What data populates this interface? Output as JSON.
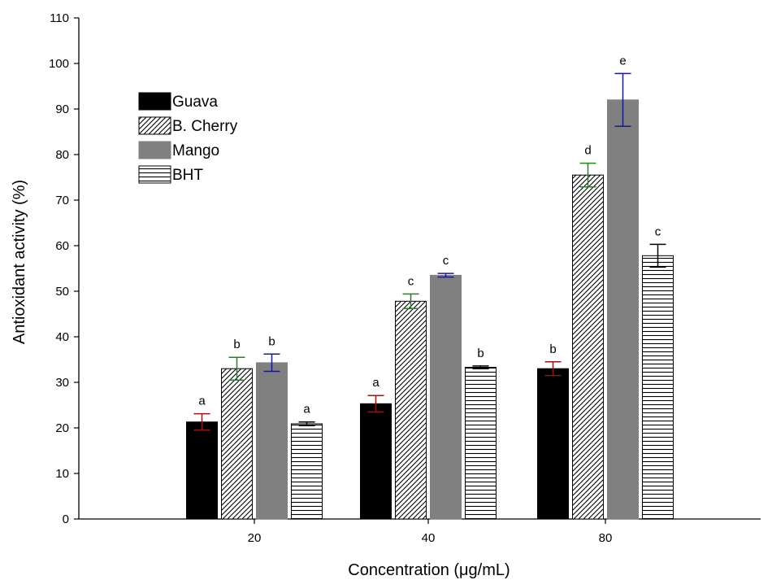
{
  "chart_data": {
    "type": "bar",
    "title": "",
    "xlabel": "Concentration (μg/mL)",
    "ylabel": "Antioxidant activity (%)",
    "ylim": [
      0,
      110
    ],
    "yticks": [
      0,
      10,
      20,
      30,
      40,
      50,
      60,
      70,
      80,
      90,
      100,
      110
    ],
    "categories": [
      "20",
      "40",
      "80"
    ],
    "grid": false,
    "legend_position": "top-left",
    "series": [
      {
        "name": "Guava",
        "fill": "solid-black",
        "errorbar_color": "#8b1a1a",
        "values": [
          21.3,
          25.3,
          33.0
        ],
        "errors": [
          1.8,
          1.8,
          1.5
        ],
        "labels": [
          "a",
          "a",
          "b"
        ]
      },
      {
        "name": "B. Cherry",
        "fill": "diagonal-hatch",
        "errorbar_color": "#1a8a1a",
        "values": [
          33.0,
          47.8,
          75.5
        ],
        "errors": [
          2.5,
          1.6,
          2.6
        ],
        "labels": [
          "b",
          "c",
          "d"
        ]
      },
      {
        "name": "Mango",
        "fill": "solid-gray",
        "errorbar_color": "#1a1a8b",
        "values": [
          34.3,
          53.5,
          92.0
        ],
        "errors": [
          1.9,
          0.4,
          5.8
        ],
        "labels": [
          "b",
          "c",
          "e"
        ]
      },
      {
        "name": "BHT",
        "fill": "horizontal-lines",
        "errorbar_color": "#000000",
        "values": [
          20.9,
          33.3,
          57.8
        ],
        "errors": [
          0.4,
          0.3,
          2.5
        ],
        "labels": [
          "a",
          "b",
          "c"
        ]
      }
    ]
  }
}
